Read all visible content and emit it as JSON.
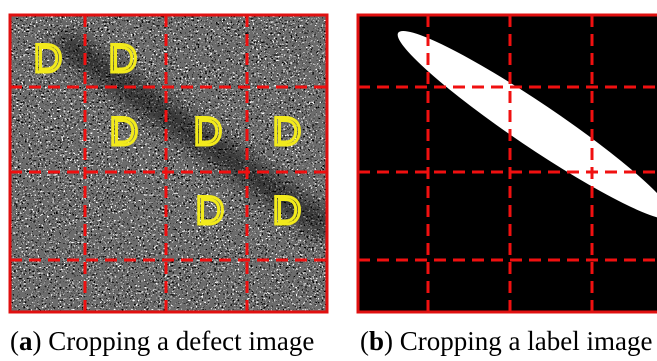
{
  "panel_a": {
    "caption": [
      "(",
      "a",
      ") Cropping a defect image"
    ],
    "defect_labels": [
      "D",
      "D",
      "D",
      "D",
      "D",
      "D",
      "D"
    ]
  },
  "panel_b": {
    "caption": [
      "(",
      "b",
      ") Cropping a label image"
    ]
  }
}
